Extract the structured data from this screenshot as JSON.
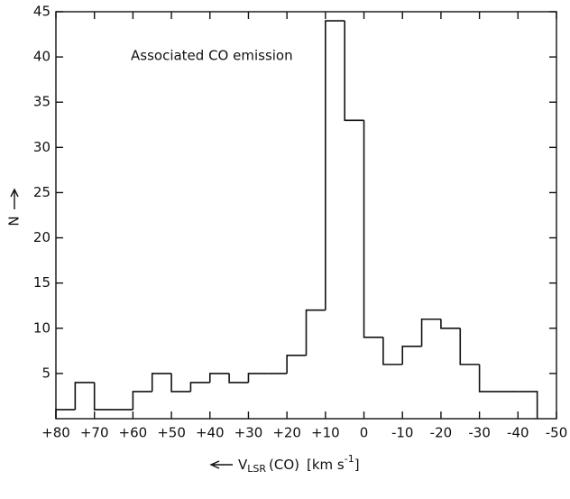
{
  "chart_data": {
    "type": "histogram",
    "annotation": "Associated CO emission",
    "y_label": "N",
    "x_label": [
      "V",
      "LSR",
      "(CO)",
      "[km s",
      "-1",
      "]"
    ],
    "bins": [
      80,
      75,
      70,
      65,
      60,
      55,
      50,
      45,
      40,
      35,
      30,
      25,
      20,
      15,
      10,
      5,
      0,
      -5,
      -10,
      -15,
      -20,
      -25,
      -30,
      -35,
      -40,
      -45
    ],
    "values": [
      1,
      4,
      1,
      1,
      3,
      5,
      3,
      4,
      5,
      4,
      5,
      5,
      7,
      12,
      44,
      33,
      9,
      6,
      8,
      11,
      10,
      6,
      3,
      3,
      3
    ],
    "color": "#111111",
    "xlim": [
      80,
      -50
    ],
    "ylim": [
      0,
      45
    ],
    "xticks": [
      {
        "value": 80,
        "label": "+80"
      },
      {
        "value": 70,
        "label": "+70"
      },
      {
        "value": 60,
        "label": "+60"
      },
      {
        "value": 50,
        "label": "+50"
      },
      {
        "value": 40,
        "label": "+40"
      },
      {
        "value": 30,
        "label": "+30"
      },
      {
        "value": 20,
        "label": "+20"
      },
      {
        "value": 10,
        "label": "+10"
      },
      0,
      -10,
      -20,
      -30,
      -40,
      -50
    ],
    "yticks": [
      5,
      10,
      15,
      20,
      25,
      30,
      35,
      40,
      45
    ]
  }
}
